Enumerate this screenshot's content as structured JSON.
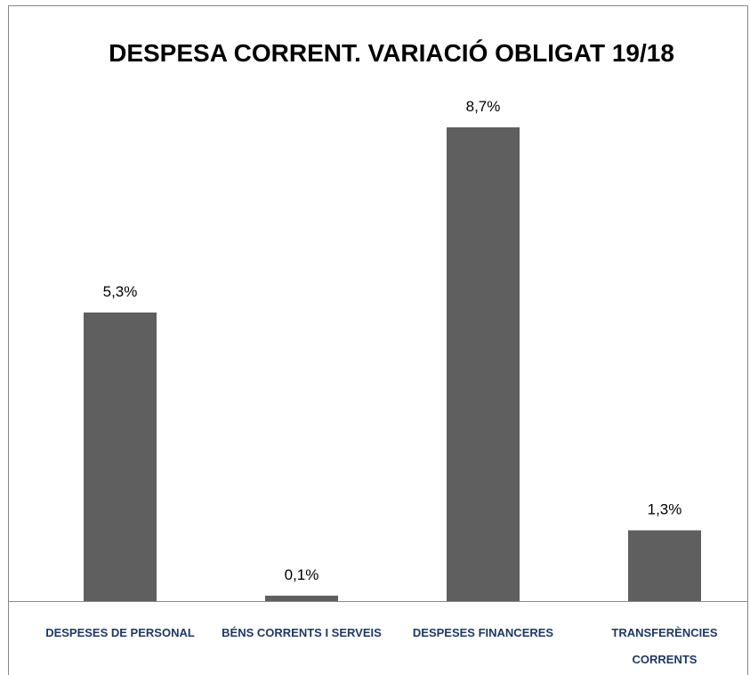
{
  "chart_data": {
    "type": "bar",
    "title": "DESPESA CORRENT. VARIACIÓ OBLIGAT 19/18",
    "categories": [
      "DESPESES DE PERSONAL",
      "BÉNS CORRENTS I SERVEIS",
      "DESPESES FINANCERES",
      "TRANSFERÈNCIES CORRENTS"
    ],
    "values": [
      5.3,
      0.1,
      8.7,
      1.3
    ],
    "value_labels": [
      "5,3%",
      "0,1%",
      "8,7%",
      "1,3%"
    ],
    "color": "#5f5f5f"
  }
}
